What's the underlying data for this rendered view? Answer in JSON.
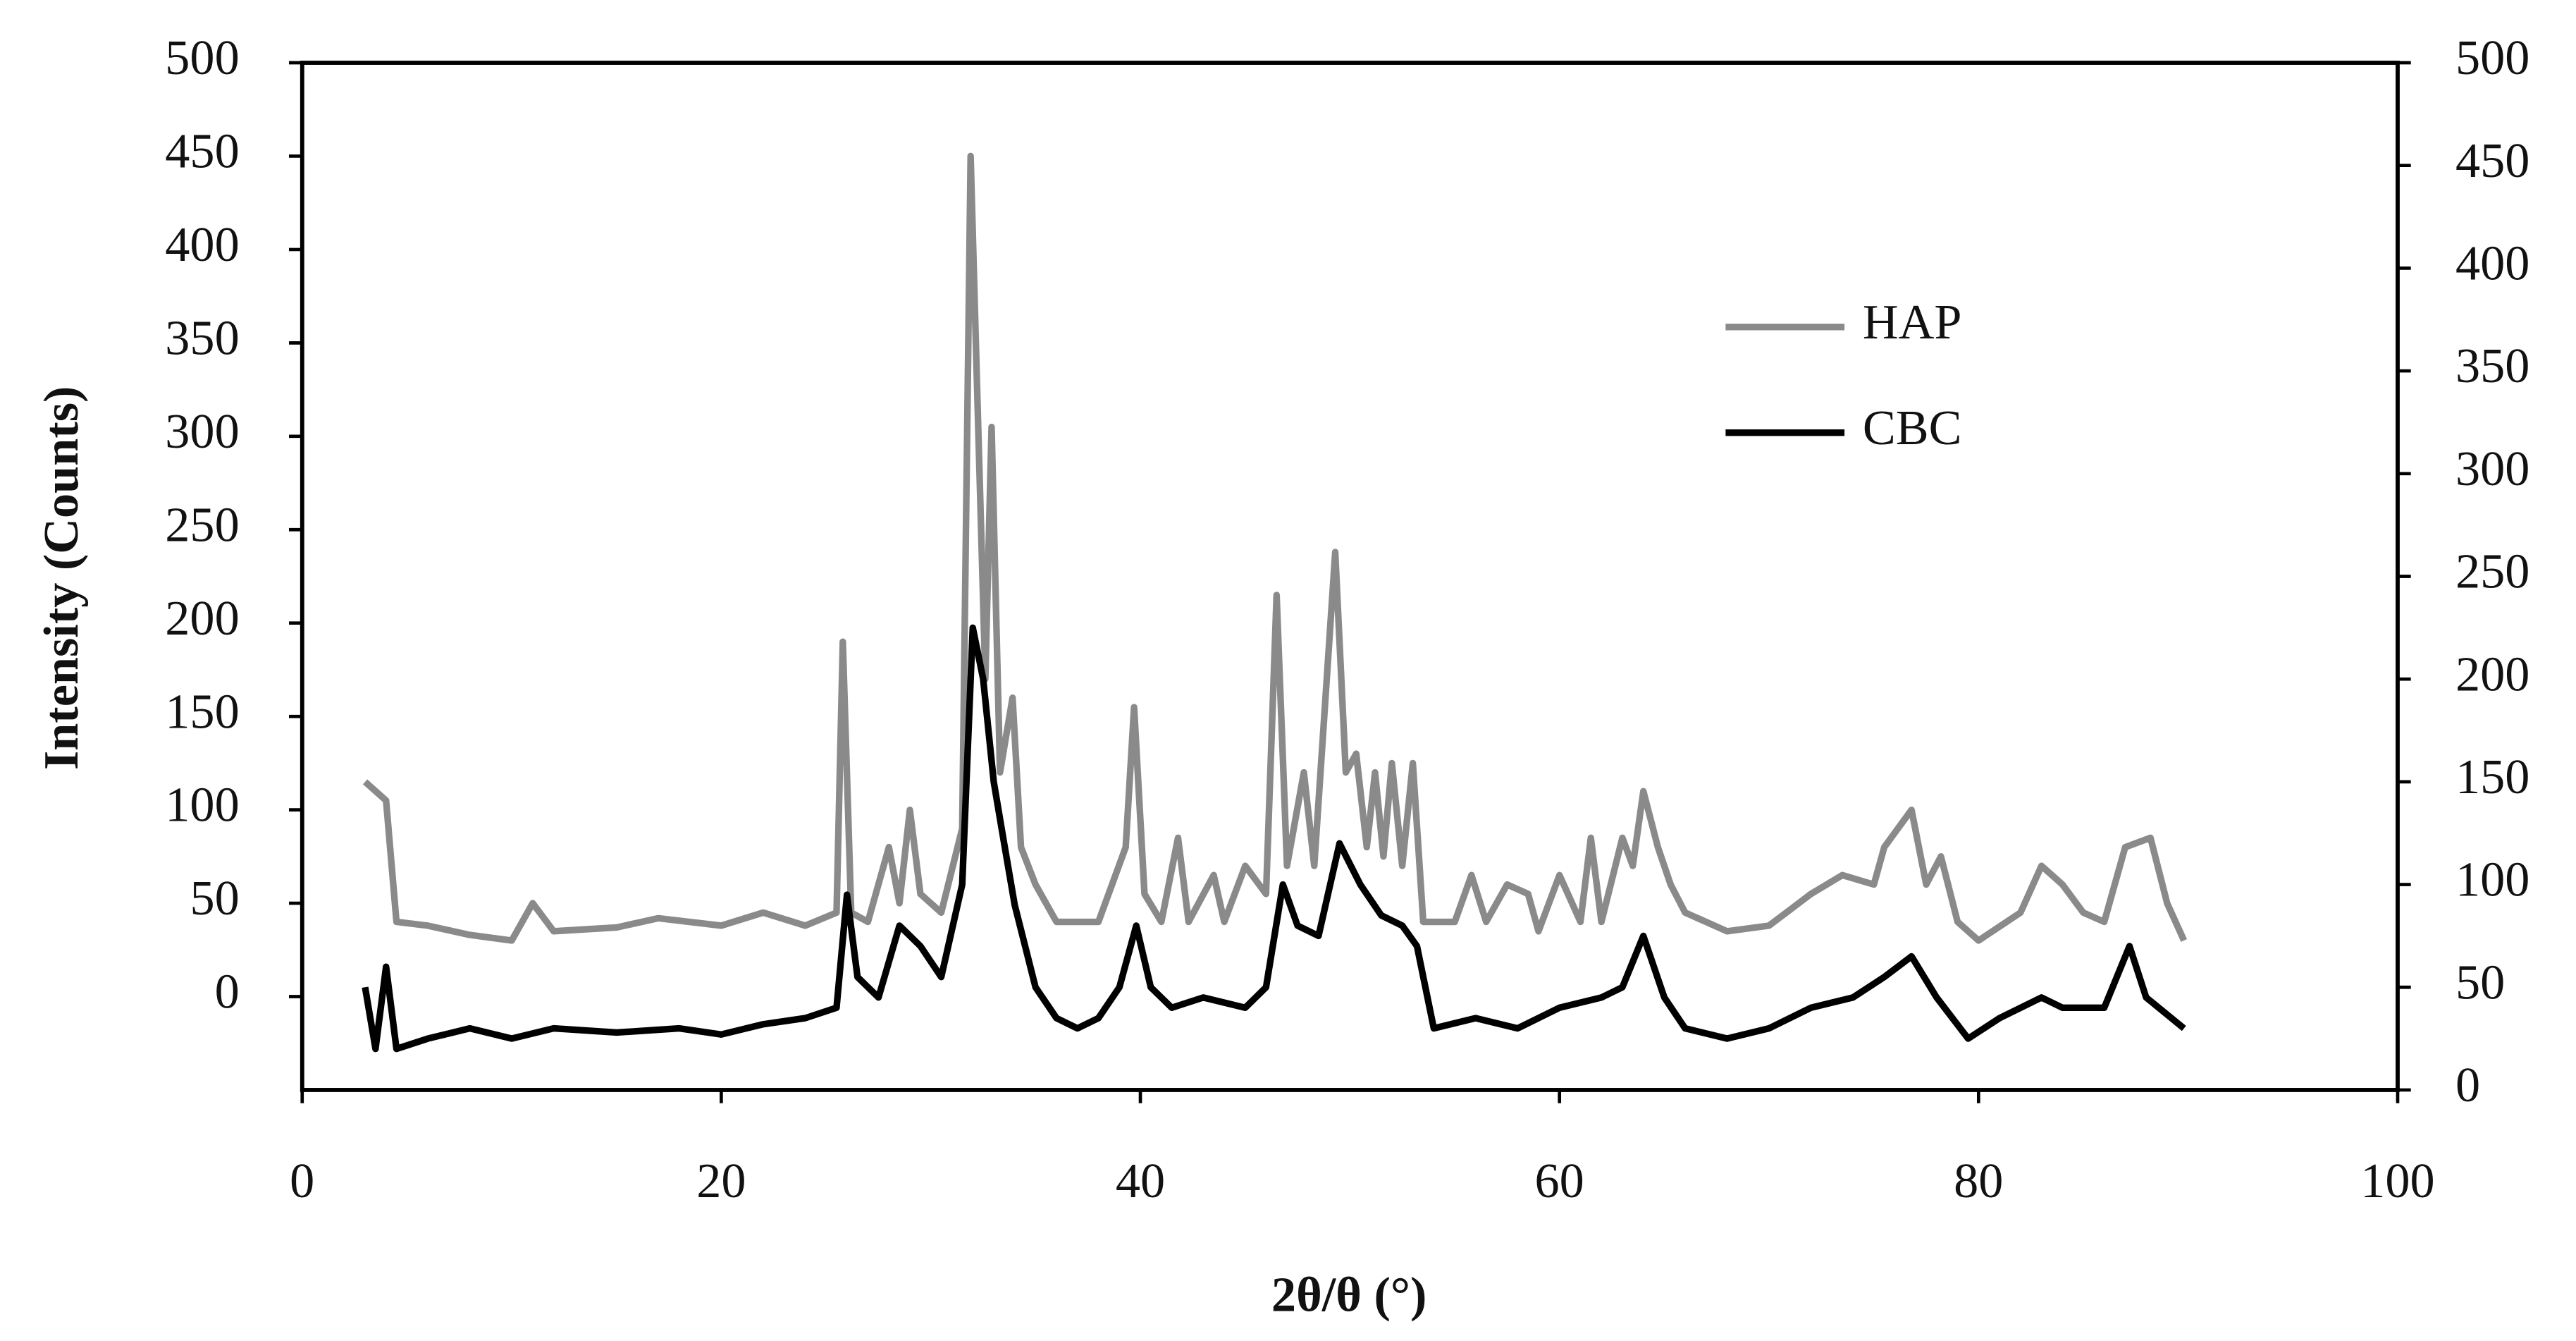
{
  "chart_data": {
    "type": "line",
    "xlabel": "2θ/θ (°)",
    "ylabel": "Intensity (Counts)",
    "xlim": [
      0,
      100
    ],
    "xticks": [
      0,
      20,
      40,
      60,
      80,
      100
    ],
    "ylim": [
      -50,
      500
    ],
    "yticks": [
      0,
      50,
      100,
      150,
      200,
      250,
      300,
      350,
      400,
      450,
      500
    ],
    "y2lim": [
      0,
      500
    ],
    "y2ticks": [
      0,
      50,
      100,
      150,
      200,
      250,
      300,
      350,
      400,
      450,
      500
    ],
    "legend": "upper right",
    "series": [
      {
        "name": "HAP",
        "color": "#8a8a8a",
        "x": [
          3,
          4,
          4.5,
          6,
          8,
          10,
          11,
          12,
          15,
          17,
          20,
          22,
          24,
          25.5,
          25.8,
          26.2,
          27,
          28,
          28.5,
          29,
          29.5,
          30.5,
          31.5,
          31.9,
          32.2,
          32.6,
          32.9,
          33.3,
          33.9,
          34.3,
          35,
          36,
          38,
          39.3,
          39.7,
          40.2,
          41,
          41.8,
          42.3,
          43.5,
          44,
          45,
          46,
          46.5,
          47,
          47.8,
          48.3,
          49.3,
          49.8,
          50.3,
          50.8,
          51.2,
          51.6,
          52,
          52.5,
          53,
          53.5,
          55,
          55.8,
          56.5,
          57.5,
          58.5,
          59,
          60,
          61,
          61.5,
          62,
          63,
          63.5,
          64,
          64.7,
          65.3,
          66,
          68,
          70,
          72,
          73.5,
          75,
          75.5,
          76.8,
          77.5,
          78.2,
          79,
          80,
          82,
          83,
          84,
          85,
          86,
          87,
          88.2,
          89,
          89.8
        ],
        "values": [
          115,
          105,
          40,
          38,
          33,
          30,
          50,
          35,
          37,
          42,
          38,
          45,
          38,
          45,
          190,
          45,
          40,
          80,
          50,
          100,
          55,
          45,
          90,
          450,
          330,
          170,
          305,
          120,
          160,
          80,
          60,
          40,
          40,
          80,
          155,
          55,
          40,
          85,
          40,
          65,
          40,
          70,
          55,
          215,
          70,
          120,
          70,
          238,
          120,
          130,
          80,
          120,
          75,
          125,
          70,
          125,
          40,
          40,
          65,
          40,
          60,
          55,
          35,
          65,
          40,
          85,
          40,
          85,
          70,
          110,
          80,
          60,
          45,
          35,
          38,
          55,
          65,
          60,
          80,
          100,
          60,
          75,
          40,
          30,
          45,
          70,
          60,
          45,
          40,
          80,
          85,
          50,
          30
        ]
      },
      {
        "name": "CBC",
        "color": "#000000",
        "axis": "y2",
        "x": [
          3,
          3.5,
          4,
          4.5,
          6,
          8,
          10,
          12,
          15,
          18,
          20,
          22,
          24,
          25.5,
          26,
          26.5,
          27.5,
          28.5,
          29.5,
          30.5,
          31.5,
          32,
          32.5,
          33,
          33.5,
          34,
          35,
          36,
          37,
          38,
          39,
          39.8,
          40.5,
          41.5,
          43,
          45,
          46,
          46.8,
          47.5,
          48.5,
          49.5,
          50.5,
          51.5,
          52.5,
          53.2,
          54,
          56,
          58,
          60,
          62,
          63,
          64,
          65,
          66,
          68,
          70,
          72,
          74,
          75.5,
          76.8,
          78,
          79.5,
          81,
          83,
          84,
          86,
          87.2,
          88,
          89.8
        ],
        "values": [
          50,
          20,
          60,
          20,
          25,
          30,
          25,
          30,
          28,
          30,
          27,
          32,
          35,
          40,
          95,
          55,
          45,
          80,
          70,
          55,
          100,
          225,
          200,
          150,
          120,
          90,
          50,
          35,
          30,
          35,
          50,
          80,
          50,
          40,
          45,
          40,
          50,
          100,
          80,
          75,
          120,
          100,
          85,
          80,
          70,
          30,
          35,
          30,
          40,
          45,
          50,
          75,
          45,
          30,
          25,
          30,
          40,
          45,
          55,
          65,
          45,
          25,
          35,
          45,
          40,
          40,
          70,
          45,
          30
        ]
      }
    ]
  }
}
